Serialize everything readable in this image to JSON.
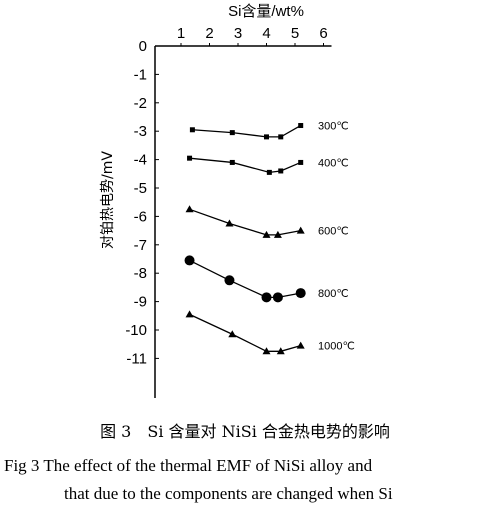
{
  "chart_data": {
    "type": "line",
    "title": "",
    "xlabel": "Si含量/wt%",
    "ylabel": "对铂热电势/mV",
    "x_position": "top",
    "xlim": [
      0,
      6
    ],
    "ylim": [
      -12,
      0
    ],
    "x_ticks": [
      1,
      2,
      3,
      4,
      5,
      6
    ],
    "y_ticks": [
      0,
      -1,
      -2,
      -3,
      -4,
      -5,
      -6,
      -7,
      -8,
      -9,
      -10,
      -11
    ],
    "legend": "inline-right",
    "grid": false,
    "series": [
      {
        "name": "300℃",
        "marker": "square",
        "x": [
          1.4,
          2.8,
          4.0,
          4.5,
          5.2
        ],
        "y": [
          -2.95,
          -3.05,
          -3.2,
          -3.2,
          -2.8
        ]
      },
      {
        "name": "400℃",
        "marker": "square",
        "x": [
          1.3,
          2.8,
          4.1,
          4.5,
          5.2
        ],
        "y": [
          -3.95,
          -4.1,
          -4.45,
          -4.4,
          -4.1
        ]
      },
      {
        "name": "600℃",
        "marker": "triangle",
        "x": [
          1.3,
          2.7,
          4.0,
          4.4,
          5.2
        ],
        "y": [
          -5.75,
          -6.25,
          -6.65,
          -6.65,
          -6.5
        ]
      },
      {
        "name": "800℃",
        "marker": "circle",
        "x": [
          1.3,
          2.7,
          4.0,
          4.4,
          5.2
        ],
        "y": [
          -7.55,
          -8.25,
          -8.85,
          -8.85,
          -8.7
        ]
      },
      {
        "name": "1000℃",
        "marker": "triangle",
        "x": [
          1.3,
          2.8,
          4.0,
          4.5,
          5.2
        ],
        "y": [
          -9.45,
          -10.15,
          -10.75,
          -10.75,
          -10.55
        ]
      }
    ]
  },
  "caption": {
    "cn": "图 3　Si 含量对 NiSi 合金热电势的影响",
    "en_line1": "Fig 3 The effect of the thermal EMF of NiSi alloy and",
    "en_line2": "that due to the components are changed when Si"
  }
}
